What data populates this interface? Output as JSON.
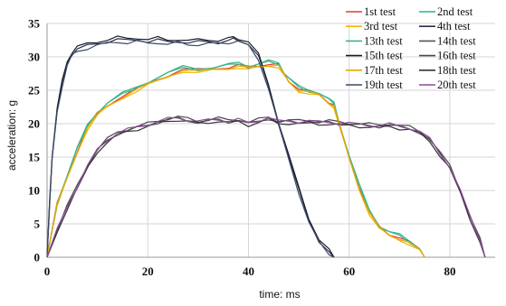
{
  "chart_data": {
    "type": "line",
    "xlabel": "time:  ms",
    "ylabel": "acceleration:  g",
    "xlim": [
      0,
      89
    ],
    "ylim": [
      0,
      35
    ],
    "xticks": [
      0,
      20,
      40,
      60,
      80
    ],
    "yticks": [
      0,
      5,
      10,
      15,
      20,
      25,
      30,
      35
    ],
    "grid": true,
    "legend_position": "top-right",
    "series": [
      {
        "name": "1st test",
        "color": "#e03a3a",
        "group": "A",
        "offset": 0.0
      },
      {
        "name": "2nd test",
        "color": "#2bb58c",
        "group": "A",
        "offset": 0.3
      },
      {
        "name": "3rd test",
        "color": "#f0b400",
        "group": "A",
        "offset": -0.3
      },
      {
        "name": "4th test",
        "color": "#2a2f4a",
        "group": "B",
        "offset": 0.0
      },
      {
        "name": "13th test",
        "color": "#3fb588",
        "group": "A",
        "offset": 0.15
      },
      {
        "name": "14th test",
        "color": "#555555",
        "group": "C",
        "offset": 0.0
      },
      {
        "name": "15th test",
        "color": "#1a1a2a",
        "group": "B",
        "offset": 0.3
      },
      {
        "name": "16th test",
        "color": "#4a4a4a",
        "group": "C",
        "offset": 0.2
      },
      {
        "name": "17th test",
        "color": "#e8a800",
        "group": "A",
        "offset": -0.15
      },
      {
        "name": "18th test",
        "color": "#333333",
        "group": "C",
        "offset": -0.2
      },
      {
        "name": "19th test",
        "color": "#3a4a6a",
        "group": "B",
        "offset": -0.3
      },
      {
        "name": "20th test",
        "color": "#8a4a9a",
        "group": "C",
        "offset": 0.1
      }
    ],
    "profiles": {
      "A": {
        "x": [
          0,
          2,
          4,
          6,
          8,
          10,
          12,
          15,
          18,
          20,
          24,
          27,
          30,
          33,
          36,
          38,
          40,
          42,
          44,
          46,
          47,
          48,
          50,
          52,
          54,
          56,
          57,
          58,
          60,
          62,
          64,
          66,
          68,
          70,
          72,
          74,
          75
        ],
        "y": [
          0,
          8,
          12,
          16,
          19.5,
          21.5,
          22.8,
          24.2,
          25.3,
          26,
          27.3,
          28.2,
          28,
          28.2,
          28.5,
          28.8,
          28.4,
          28.7,
          29,
          28.8,
          27.5,
          26.5,
          25.2,
          24.8,
          24.4,
          23.3,
          22.8,
          20,
          15,
          10.5,
          6.8,
          4.5,
          3.5,
          3,
          2.2,
          1.2,
          0
        ]
      },
      "B": {
        "x": [
          0,
          0.5,
          1,
          2,
          3,
          4,
          5,
          6,
          8,
          10,
          12,
          14,
          16,
          18,
          20,
          22,
          24,
          26,
          28,
          30,
          32,
          34,
          36,
          37,
          38,
          40,
          42,
          44,
          46,
          48,
          50,
          52,
          54,
          56,
          57
        ],
        "y": [
          0,
          8,
          15,
          22,
          26,
          29,
          30.5,
          31.2,
          31.6,
          32,
          32.3,
          32.6,
          32.4,
          32.6,
          32.3,
          32.5,
          32.2,
          32.4,
          32.1,
          32.2,
          32.3,
          32.2,
          32.4,
          32.6,
          32.5,
          32,
          30,
          25.5,
          20,
          15,
          10,
          5.5,
          2.5,
          0.8,
          0
        ]
      },
      "C": {
        "x": [
          0,
          2,
          4,
          6,
          8,
          10,
          12,
          14,
          16,
          18,
          20,
          22,
          24,
          26,
          28,
          30,
          32,
          34,
          36,
          38,
          40,
          42,
          44,
          46,
          48,
          50,
          52,
          54,
          56,
          58,
          60,
          62,
          64,
          66,
          68,
          70,
          72,
          74,
          76,
          78,
          80,
          82,
          84,
          86,
          87
        ],
        "y": [
          0,
          4,
          7.5,
          10.5,
          13.5,
          16,
          17.5,
          18.5,
          19,
          19.4,
          19.8,
          20.2,
          20.6,
          20.8,
          20.5,
          20.2,
          20.4,
          20.6,
          20.3,
          20.5,
          20,
          20.4,
          20.8,
          20.2,
          20.3,
          20.2,
          20.3,
          20.1,
          20.2,
          20,
          19.9,
          19.8,
          19.7,
          19.6,
          19.8,
          19.5,
          19.3,
          18.7,
          17.6,
          15.5,
          13.5,
          10,
          6,
          2.5,
          0
        ]
      }
    }
  }
}
